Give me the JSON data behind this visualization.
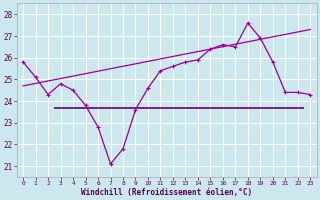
{
  "xlabel": "Windchill (Refroidissement éolien,°C)",
  "background_color": "#cce8ee",
  "grid_color": "#ffffff",
  "line_color": "#990099",
  "dark_line_color": "#660066",
  "ylim": [
    20.5,
    28.5
  ],
  "xlim": [
    -0.5,
    23.5
  ],
  "yticks": [
    21,
    22,
    23,
    24,
    25,
    26,
    27,
    28
  ],
  "xticks": [
    0,
    1,
    2,
    3,
    4,
    5,
    6,
    7,
    8,
    9,
    10,
    11,
    12,
    13,
    14,
    15,
    16,
    17,
    18,
    19,
    20,
    21,
    22,
    23
  ],
  "windchill_x": [
    0,
    1,
    2,
    3,
    4,
    5,
    6,
    7,
    8,
    9,
    10,
    11,
    12,
    13,
    14,
    15,
    16,
    17,
    18,
    19,
    20,
    21,
    22,
    23
  ],
  "windchill_y": [
    25.8,
    25.1,
    24.3,
    24.8,
    24.5,
    23.8,
    22.8,
    21.1,
    21.8,
    23.6,
    24.6,
    25.4,
    25.6,
    25.8,
    25.9,
    26.4,
    26.6,
    26.5,
    27.6,
    26.9,
    25.8,
    24.4,
    24.4,
    24.3
  ],
  "trend_x": [
    0,
    23
  ],
  "trend_y": [
    24.7,
    27.3
  ],
  "hline_y": 23.7,
  "hline_xstart": 2.5,
  "hline_xend": 22.5,
  "marker_size": 2.5,
  "linewidth": 0.9
}
